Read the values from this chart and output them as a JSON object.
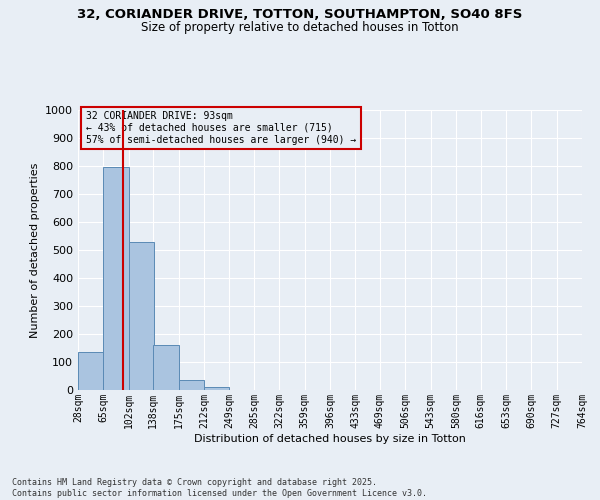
{
  "title_line1": "32, CORIANDER DRIVE, TOTTON, SOUTHAMPTON, SO40 8FS",
  "title_line2": "Size of property relative to detached houses in Totton",
  "xlabel": "Distribution of detached houses by size in Totton",
  "ylabel": "Number of detached properties",
  "footer_line1": "Contains HM Land Registry data © Crown copyright and database right 2025.",
  "footer_line2": "Contains public sector information licensed under the Open Government Licence v3.0.",
  "annotation_line1": "32 CORIANDER DRIVE: 93sqm",
  "annotation_line2": "← 43% of detached houses are smaller (715)",
  "annotation_line3": "57% of semi-detached houses are larger (940) →",
  "bins": [
    28,
    65,
    102,
    138,
    175,
    212,
    249,
    285,
    322,
    359,
    396,
    433,
    469,
    506,
    543,
    580,
    616,
    653,
    690,
    727,
    764
  ],
  "bin_labels": [
    "28sqm",
    "65sqm",
    "102sqm",
    "138sqm",
    "175sqm",
    "212sqm",
    "249sqm",
    "285sqm",
    "322sqm",
    "359sqm",
    "396sqm",
    "433sqm",
    "469sqm",
    "506sqm",
    "543sqm",
    "580sqm",
    "616sqm",
    "653sqm",
    "690sqm",
    "727sqm",
    "764sqm"
  ],
  "bar_heights": [
    135,
    795,
    530,
    162,
    37,
    12,
    0,
    0,
    0,
    0,
    0,
    0,
    0,
    0,
    0,
    0,
    0,
    0,
    0,
    0
  ],
  "bar_color": "#aac4e0",
  "bar_edge_color": "#5a8ab5",
  "red_line_x": 93,
  "ylim": [
    0,
    1000
  ],
  "yticks": [
    0,
    100,
    200,
    300,
    400,
    500,
    600,
    700,
    800,
    900,
    1000
  ],
  "bg_color": "#e8eef5",
  "grid_color": "#ffffff",
  "annotation_box_edge": "#cc0000",
  "red_line_color": "#cc0000",
  "figsize": [
    6.0,
    5.0
  ],
  "dpi": 100
}
